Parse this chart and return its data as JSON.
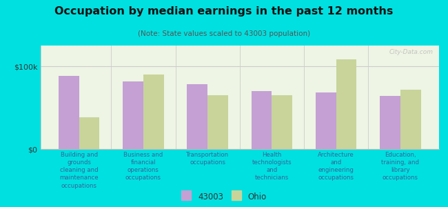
{
  "title": "Occupation by median earnings in the past 12 months",
  "subtitle": "(Note: State values scaled to 43003 population)",
  "categories": [
    "Building and\ngrounds\ncleaning and\nmaintenance\noccupations",
    "Business and\nfinancial\noperations\noccupations",
    "Transportation\noccupations",
    "Health\ntechnologists\nand\ntechnicians",
    "Architecture\nand\nengineering\noccupations",
    "Education,\ntraining, and\nlibrary\noccupations"
  ],
  "values_43003": [
    88000,
    82000,
    78000,
    70000,
    68000,
    64000
  ],
  "values_ohio": [
    38000,
    90000,
    65000,
    65000,
    108000,
    72000
  ],
  "color_43003": "#c4a0d4",
  "color_ohio": "#c8d49a",
  "ylabel_tick": "$100k",
  "y_tick_val": 100000,
  "background_outer": "#00e0e0",
  "background_inner": "#eef5e4",
  "watermark": "City-Data.com",
  "legend_43003": "43003",
  "legend_ohio": "Ohio",
  "ylim": [
    0,
    125000
  ],
  "bar_width": 0.32
}
